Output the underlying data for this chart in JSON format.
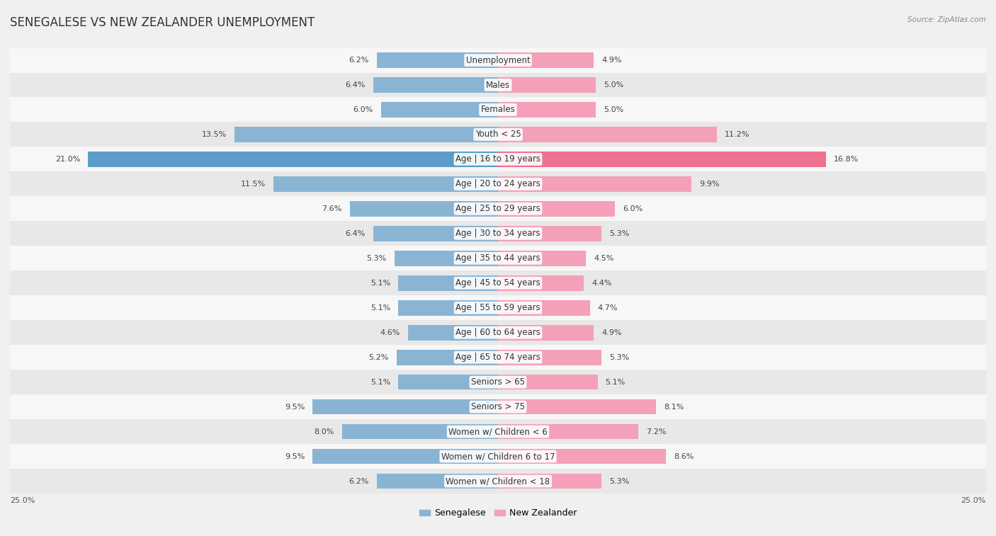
{
  "title": "SENEGALESE VS NEW ZEALANDER UNEMPLOYMENT",
  "source": "Source: ZipAtlas.com",
  "categories": [
    "Unemployment",
    "Males",
    "Females",
    "Youth < 25",
    "Age | 16 to 19 years",
    "Age | 20 to 24 years",
    "Age | 25 to 29 years",
    "Age | 30 to 34 years",
    "Age | 35 to 44 years",
    "Age | 45 to 54 years",
    "Age | 55 to 59 years",
    "Age | 60 to 64 years",
    "Age | 65 to 74 years",
    "Seniors > 65",
    "Seniors > 75",
    "Women w/ Children < 6",
    "Women w/ Children 6 to 17",
    "Women w/ Children < 18"
  ],
  "senegalese": [
    6.2,
    6.4,
    6.0,
    13.5,
    21.0,
    11.5,
    7.6,
    6.4,
    5.3,
    5.1,
    5.1,
    4.6,
    5.2,
    5.1,
    9.5,
    8.0,
    9.5,
    6.2
  ],
  "new_zealander": [
    4.9,
    5.0,
    5.0,
    11.2,
    16.8,
    9.9,
    6.0,
    5.3,
    4.5,
    4.4,
    4.7,
    4.9,
    5.3,
    5.1,
    8.1,
    7.2,
    8.6,
    5.3
  ],
  "senegalese_color": "#8ab4d4",
  "new_zealander_color": "#f4a0b8",
  "highlight_senegalese_color": "#5b9dc8",
  "highlight_new_zealander_color": "#f07090",
  "highlight_row": 4,
  "bar_height": 0.62,
  "max_val": 25.0,
  "bg_color": "#f0f0f0",
  "row_bg_light": "#f7f7f7",
  "row_bg_dark": "#e8e8e8",
  "label_fontsize": 8.5,
  "title_fontsize": 12,
  "value_fontsize": 8.0,
  "legend_labels": [
    "Senegalese",
    "New Zealander"
  ]
}
